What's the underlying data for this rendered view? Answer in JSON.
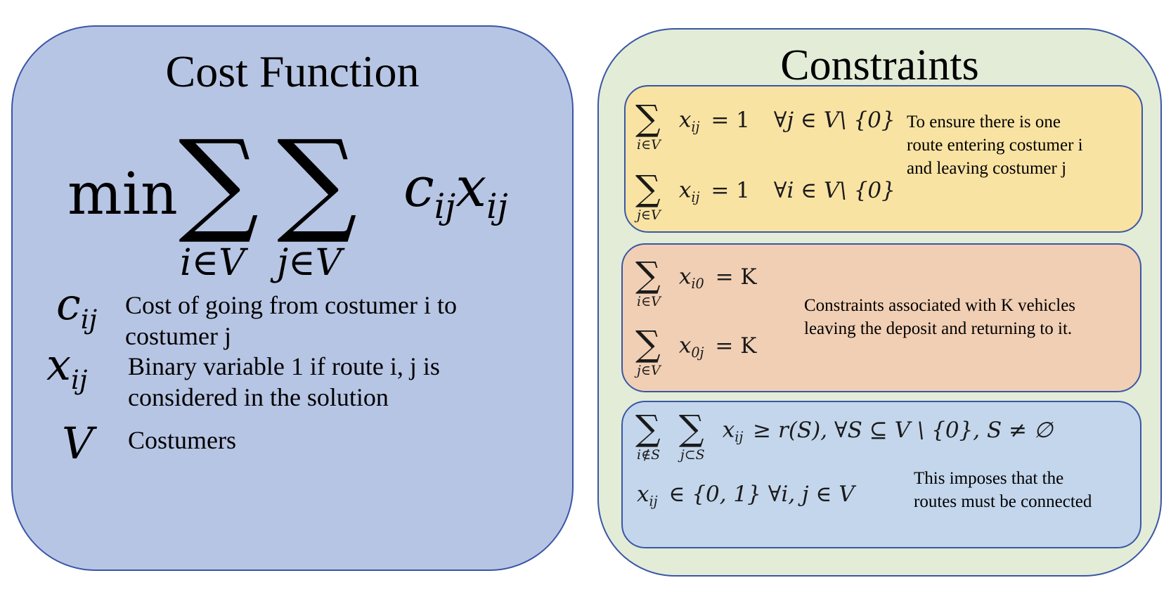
{
  "cost_function": {
    "title": "Cost Function",
    "formula": {
      "min": "min",
      "sum1_index": "i∈V",
      "sum2_index": "j∈V",
      "term_c": "c",
      "term_x": "x",
      "term_sub": "ij"
    },
    "legend": [
      {
        "symbol": "c",
        "subscript": "ij",
        "description_line1": "Cost of going from costumer i to",
        "description_line2": "costumer j"
      },
      {
        "symbol": "x",
        "subscript": "ij",
        "description_line1": "Binary variable 1 if route i, j is",
        "description_line2": "considered in the solution"
      },
      {
        "symbol": "V",
        "subscript": "",
        "description_line1": "Costumers",
        "description_line2": ""
      }
    ]
  },
  "constraints": {
    "title": "Constraints",
    "routes": {
      "eq1_index": "i∈V",
      "eq1_var": "x",
      "eq1_sub": "ij",
      "eq1_rhs": "= 1",
      "eq1_cond": "∀j ∈ V\\ {0}",
      "eq2_index": "j∈V",
      "eq2_var": "x",
      "eq2_sub": "ij",
      "eq2_rhs": "= 1",
      "eq2_cond": "∀i ∈ V\\ {0}",
      "description": [
        "To ensure there is one",
        "route entering costumer i",
        "and leaving costumer j"
      ]
    },
    "vehicles": {
      "eq1_index": "i∈V",
      "eq1_var": "x",
      "eq1_sub": "i0",
      "eq1_rhs": "= K",
      "eq2_index": "j∈V",
      "eq2_var": "x",
      "eq2_sub": "0j",
      "eq2_rhs": "= K",
      "description": [
        "Constraints associated with K vehicles",
        "leaving the deposit and returning to it."
      ]
    },
    "connectivity": {
      "eq1_index1": "i∉S",
      "eq1_index2": "j⊂S",
      "eq1_var": "x",
      "eq1_sub": "ij",
      "eq1_rest": "≥ r(S),  ∀S ⊆ V \\ {0}, S ≠ ∅",
      "eq2_var": "x",
      "eq2_sub": "ij",
      "eq2_rest": "∈ {0, 1}    ∀i, j ∈ V",
      "description": [
        "This imposes that the",
        "routes must be connected"
      ]
    }
  }
}
